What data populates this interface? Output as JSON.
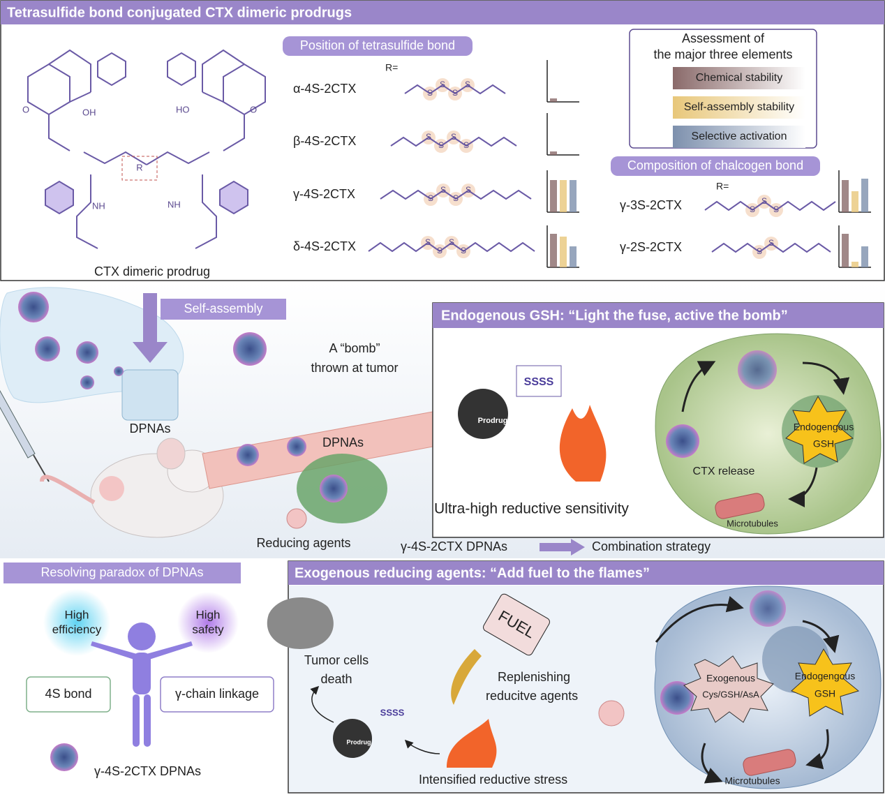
{
  "top_panel": {
    "title": "Tetrasulfide bond conjugated CTX dimeric prodrugs",
    "structure": {
      "caption": "CTX dimeric prodrug",
      "r_label": "R",
      "oh": "OH",
      "ho": "HO",
      "nh": "NH",
      "o": "O"
    },
    "position_section": {
      "title": "Position of tetrasulfide bond",
      "r_equals": "R=",
      "compounds": [
        "α-4S-2CTX",
        "β-4S-2CTX",
        "γ-4S-2CTX",
        "δ-4S-2CTX"
      ]
    },
    "assessment": {
      "title": [
        "Assessment of",
        "the major three elements"
      ],
      "legend": [
        "Chemical stability",
        "Self-assembly stability",
        "Selective activation"
      ]
    },
    "chalcogen_section": {
      "title": "Composition of chalcogen bond",
      "r_equals": "R=",
      "compounds": [
        "γ-3S-2CTX",
        "γ-2S-2CTX"
      ]
    },
    "sulfur": "S"
  },
  "middle": {
    "self_assembly": "Self-assembly",
    "dpnas_vial": "DPNAs",
    "bomb_text": [
      "A “bomb”",
      "thrown at tumor"
    ],
    "dpnas_vessel": "DPNAs",
    "reducing_agents": "Reducing agents",
    "flow": {
      "from": "γ-4S-2CTX DPNAs",
      "to": "Combination strategy"
    }
  },
  "endogenous_panel": {
    "title": "Endogenous GSH: “Light the fuse, active the bomb”",
    "bomb_label": "Prodrug",
    "fuse": "SSSS",
    "gsh": [
      "Endogengous",
      "GSH"
    ],
    "ctx_release": "CTX release",
    "microtubules": "Microtubules",
    "caption": "Ultra-high reductive sensitivity"
  },
  "paradox_panel": {
    "title": "Resolving paradox of DPNAs",
    "efficiency": [
      "High",
      "efficiency"
    ],
    "safety": [
      "High",
      "safety"
    ],
    "bond": "4S bond",
    "linkage": "γ-chain linkage",
    "caption": "γ-4S-2CTX DPNAs"
  },
  "exogenous_panel": {
    "title": "Exogenous reducing agents: “Add fuel to the flames”",
    "tumor_death": [
      "Tumor cells",
      "death"
    ],
    "fuel": "FUEL",
    "replenishing": [
      "Replenishing",
      "reducitve agents"
    ],
    "bomb_label": "Prodrug",
    "fuse": "SSSS",
    "stress": "Intensified reductive stress",
    "exogenous": [
      "Exogenous",
      "Cys/GSH/AsA"
    ],
    "gsh": [
      "Endogengous",
      "GSH"
    ],
    "microtubules": "Microtubules"
  }
}
